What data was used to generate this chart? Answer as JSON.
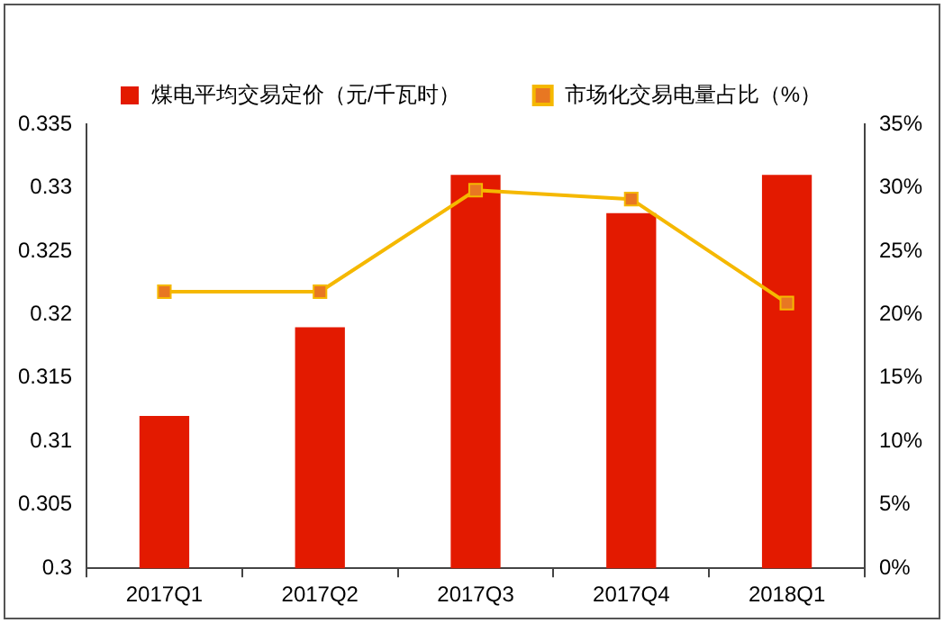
{
  "chart_data": {
    "type": "bar",
    "categories": [
      "2017Q1",
      "2017Q2",
      "2017Q3",
      "2017Q4",
      "2018Q1"
    ],
    "series": [
      {
        "name": "煤电平均交易定价（元/千瓦时）",
        "color": "#e31a00",
        "values": [
          0.312,
          0.319,
          0.331,
          0.328,
          0.331
        ]
      },
      {
        "name": "市场化交易电量占比（%）",
        "type": "line",
        "axis": "y2",
        "color": "#f5b800",
        "marker": "square",
        "values": [
          21.8,
          21.8,
          29.8,
          29.1,
          20.9
        ]
      }
    ],
    "ylim": [
      0.3,
      0.335
    ],
    "yticks": [
      0.3,
      0.305,
      0.31,
      0.315,
      0.32,
      0.325,
      0.33,
      0.335
    ],
    "y2lim": [
      0,
      35
    ],
    "y2ticks": [
      {
        "value": 0,
        "label": "0%"
      },
      {
        "value": 5,
        "label": "5%"
      },
      {
        "value": 10,
        "label": "10%"
      },
      {
        "value": 15,
        "label": "15%"
      },
      {
        "value": 20,
        "label": "20%"
      },
      {
        "value": 25,
        "label": "25%"
      },
      {
        "value": 30,
        "label": "30%"
      },
      {
        "value": 35,
        "label": "35%"
      }
    ],
    "grid": false,
    "legend": "top"
  }
}
